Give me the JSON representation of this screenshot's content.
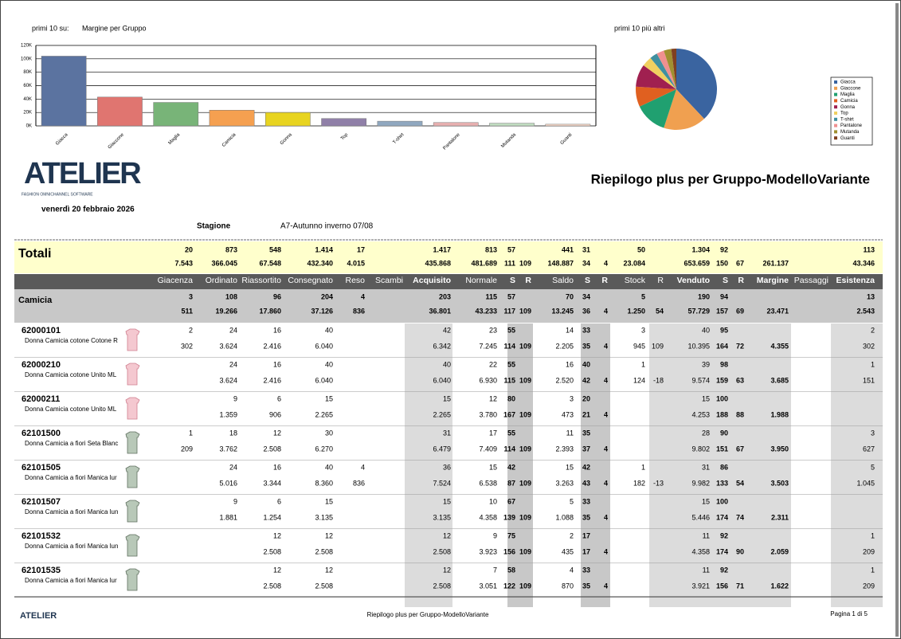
{
  "chart_data": [
    {
      "type": "bar",
      "title": "primi 10 su:",
      "subtitle": "Margine per Gruppo",
      "categories": [
        "Giacca",
        "Giaccone",
        "Maglia",
        "Camicia",
        "Gonna",
        "Top",
        "T-shirt",
        "Pantalone",
        "Mutanda",
        "Guanti"
      ],
      "values": [
        104000,
        43000,
        35000,
        23471,
        20000,
        11000,
        7000,
        5000,
        4000,
        2500
      ],
      "colors": [
        "#5b73a0",
        "#e07570",
        "#78b478",
        "#f5a050",
        "#e8d420",
        "#9080a8",
        "#90a8c0",
        "#e8b0b0",
        "#c0dcc0",
        "#f8d8c8"
      ],
      "ylim": [
        0,
        120000
      ],
      "yticks": [
        {
          "value": 0,
          "label": "0K"
        },
        {
          "value": 20000,
          "label": "20K"
        },
        {
          "value": 40000,
          "label": "40K"
        },
        {
          "value": 60000,
          "label": "60K"
        },
        {
          "value": 80000,
          "label": "80K"
        },
        {
          "value": 100000,
          "label": "100K"
        },
        {
          "value": 120000,
          "label": "120K"
        }
      ],
      "grid": true
    },
    {
      "type": "pie",
      "title": "primi 10 più altri",
      "categories": [
        "Giacca",
        "Giaccone",
        "Maglia",
        "Camicia",
        "Gonna",
        "Top",
        "T-shirt",
        "Pantalone",
        "Mutanda",
        "Guanti"
      ],
      "values": [
        38,
        17,
        13,
        8,
        9,
        4,
        3,
        3,
        3,
        2
      ],
      "colors": [
        "#3a64a0",
        "#f0a050",
        "#20a070",
        "#e06020",
        "#a02050",
        "#f0d060",
        "#4090a0",
        "#f09090",
        "#a09030",
        "#804020"
      ],
      "legend": "right"
    }
  ],
  "header": {
    "logo": "ATELIER",
    "logo_sub": "FASHION OMNICHANNEL SOFTWARE",
    "title": "Riepilogo plus  per Gruppo-ModelloVariante",
    "date": "venerdì 20 febbraio 2026",
    "season_label": "Stagione",
    "season": "A7-Autunno inverno 07/08"
  },
  "table": {
    "columns": [
      "Giacenza",
      "Ordinato",
      "Riassortito",
      "Consegnato",
      "Reso",
      "Scambi",
      "Acquisito",
      "Normale",
      "S",
      "R",
      "Saldo",
      "S",
      "R",
      "Stock",
      "R",
      "Venduto",
      "S",
      "R",
      "Margine",
      "Passaggi",
      "Esistenza"
    ],
    "totals": {
      "label": "Totali",
      "line1": [
        "20",
        "873",
        "548",
        "1.414",
        "17",
        null,
        "1.417",
        "813",
        "57",
        null,
        "441",
        "31",
        null,
        "50",
        null,
        "1.304",
        "92",
        null,
        null,
        null,
        "113"
      ],
      "line2": [
        "7.543",
        "366.045",
        "67.548",
        "432.340",
        "4.015",
        null,
        "435.868",
        "481.689",
        "111",
        "109",
        "148.887",
        "34",
        "4",
        "23.084",
        null,
        "653.659",
        "150",
        "67",
        "261.137",
        null,
        "43.346"
      ]
    },
    "group": {
      "label": "Camicia",
      "line1": [
        "3",
        "108",
        "96",
        "204",
        "4",
        null,
        "203",
        "115",
        "57",
        null,
        "70",
        "34",
        null,
        "5",
        null,
        "190",
        "94",
        null,
        null,
        null,
        "13"
      ],
      "line2": [
        "511",
        "19.266",
        "17.860",
        "37.126",
        "836",
        null,
        "36.801",
        "43.233",
        "117",
        "109",
        "13.245",
        "36",
        "4",
        "1.250",
        "54",
        "57.729",
        "157",
        "69",
        "23.471",
        null,
        "2.543"
      ]
    },
    "rows": [
      {
        "code": "62000101",
        "description": "Donna  Camicia cotone  Cotone R",
        "line1": [
          "2",
          "24",
          "16",
          "40",
          null,
          null,
          "42",
          "23",
          "55",
          null,
          "14",
          "33",
          null,
          "3",
          null,
          "40",
          "95",
          null,
          null,
          null,
          "2"
        ],
        "line2": [
          "302",
          "3.624",
          "2.416",
          "6.040",
          null,
          null,
          "6.342",
          "7.245",
          "114",
          "109",
          "2.205",
          "35",
          "4",
          "945",
          "109",
          "10.395",
          "164",
          "72",
          "4.355",
          null,
          "302"
        ]
      },
      {
        "code": "62000210",
        "description": "Donna  Camicia cotone Unito ML",
        "line1": [
          null,
          "24",
          "16",
          "40",
          null,
          null,
          "40",
          "22",
          "55",
          null,
          "16",
          "40",
          null,
          "1",
          null,
          "39",
          "98",
          null,
          null,
          null,
          "1"
        ],
        "line2": [
          null,
          "3.624",
          "2.416",
          "6.040",
          null,
          null,
          "6.040",
          "6.930",
          "115",
          "109",
          "2.520",
          "42",
          "4",
          "124",
          "-18",
          "9.574",
          "159",
          "63",
          "3.685",
          null,
          "151"
        ]
      },
      {
        "code": "62000211",
        "description": "Donna  Camicia cotone Unito ML",
        "line1": [
          null,
          "9",
          "6",
          "15",
          null,
          null,
          "15",
          "12",
          "80",
          null,
          "3",
          "20",
          null,
          null,
          null,
          "15",
          "100",
          null,
          null,
          null,
          null
        ],
        "line2": [
          null,
          "1.359",
          "906",
          "2.265",
          null,
          null,
          "2.265",
          "3.780",
          "167",
          "109",
          "473",
          "21",
          "4",
          null,
          null,
          "4.253",
          "188",
          "88",
          "1.988",
          null,
          null
        ]
      },
      {
        "code": "62101500",
        "description": "Donna Camicia a fiori  Seta Blanc",
        "line1": [
          "1",
          "18",
          "12",
          "30",
          null,
          null,
          "31",
          "17",
          "55",
          null,
          "11",
          "35",
          null,
          null,
          null,
          "28",
          "90",
          null,
          null,
          null,
          "3"
        ],
        "line2": [
          "209",
          "3.762",
          "2.508",
          "6.270",
          null,
          null,
          "6.479",
          "7.409",
          "114",
          "109",
          "2.393",
          "37",
          "4",
          null,
          null,
          "9.802",
          "151",
          "67",
          "3.950",
          null,
          "627"
        ]
      },
      {
        "code": "62101505",
        "description": "Donna Camicia a fiori Manica lur",
        "line1": [
          null,
          "24",
          "16",
          "40",
          "4",
          null,
          "36",
          "15",
          "42",
          null,
          "15",
          "42",
          null,
          "1",
          null,
          "31",
          "86",
          null,
          null,
          null,
          "5"
        ],
        "line2": [
          null,
          "5.016",
          "3.344",
          "8.360",
          "836",
          null,
          "7.524",
          "6.538",
          "87",
          "109",
          "3.263",
          "43",
          "4",
          "182",
          "-13",
          "9.982",
          "133",
          "54",
          "3.503",
          null,
          "1.045"
        ]
      },
      {
        "code": "62101507",
        "description": "Donna Camicia a fiori Manica lun",
        "line1": [
          null,
          "9",
          "6",
          "15",
          null,
          null,
          "15",
          "10",
          "67",
          null,
          "5",
          "33",
          null,
          null,
          null,
          "15",
          "100",
          null,
          null,
          null,
          null
        ],
        "line2": [
          null,
          "1.881",
          "1.254",
          "3.135",
          null,
          null,
          "3.135",
          "4.358",
          "139",
          "109",
          "1.088",
          "35",
          "4",
          null,
          null,
          "5.446",
          "174",
          "74",
          "2.311",
          null,
          null
        ]
      },
      {
        "code": "62101532",
        "description": "Donna Camicia a fiori Manica lun",
        "line1": [
          null,
          null,
          "12",
          "12",
          null,
          null,
          "12",
          "9",
          "75",
          null,
          "2",
          "17",
          null,
          null,
          null,
          "11",
          "92",
          null,
          null,
          null,
          "1"
        ],
        "line2": [
          null,
          null,
          "2.508",
          "2.508",
          null,
          null,
          "2.508",
          "3.923",
          "156",
          "109",
          "435",
          "17",
          "4",
          null,
          null,
          "4.358",
          "174",
          "90",
          "2.059",
          null,
          "209"
        ]
      },
      {
        "code": "62101535",
        "description": "Donna Camicia a fiori Manica lur",
        "line1": [
          null,
          null,
          "12",
          "12",
          null,
          null,
          "12",
          "7",
          "58",
          null,
          "4",
          "33",
          null,
          null,
          null,
          "11",
          "92",
          null,
          null,
          null,
          "1"
        ],
        "line2": [
          null,
          null,
          "2.508",
          "2.508",
          null,
          null,
          "2.508",
          "3.051",
          "122",
          "109",
          "870",
          "35",
          "4",
          null,
          null,
          "3.921",
          "156",
          "71",
          "1.622",
          null,
          "209"
        ]
      }
    ]
  },
  "footer": {
    "logo": "ATELIER",
    "title": "Riepilogo plus  per Gruppo-ModelloVariante",
    "page": "Pagina 1 di 5"
  }
}
